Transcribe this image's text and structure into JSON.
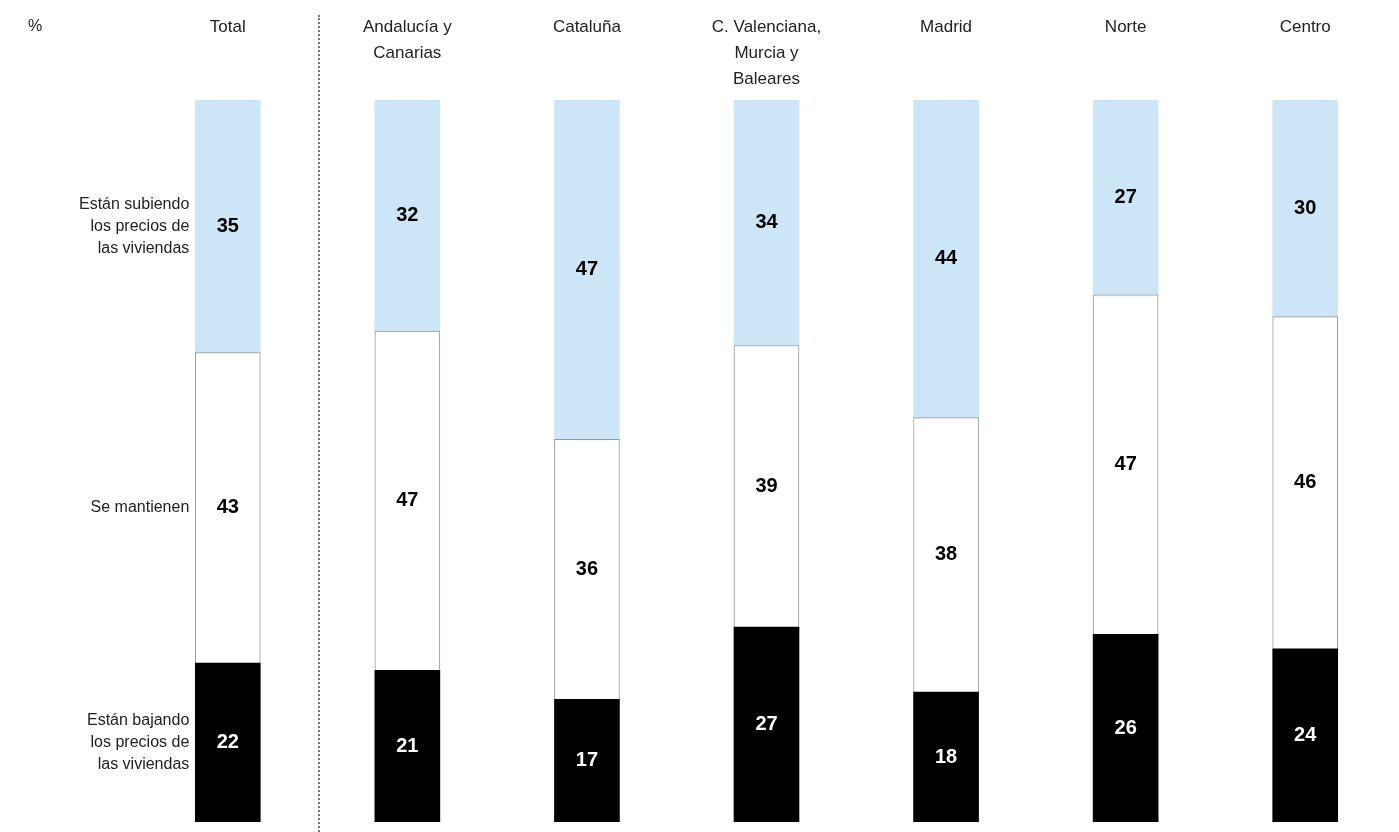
{
  "chart_data": {
    "type": "bar",
    "stacked": true,
    "annotations": [
      "%"
    ],
    "categories": [
      "Total",
      "Andalucía y Canarias",
      "Cataluña",
      "C. Valenciana, Murcia y Baleares",
      "Madrid",
      "Norte",
      "Centro"
    ],
    "series": [
      {
        "name": "Están bajando los precios de las viviendas",
        "color": "#000000",
        "values": [
          22,
          21,
          17,
          27,
          18,
          26,
          24
        ]
      },
      {
        "name": "Se mantienen",
        "color": "#ffffff",
        "values": [
          43,
          47,
          36,
          39,
          38,
          47,
          46
        ]
      },
      {
        "name": "Están subiendo los precios de las viviendas",
        "color": "#cce6f7",
        "values": [
          35,
          32,
          47,
          34,
          44,
          27,
          30
        ]
      }
    ],
    "tick_labels": false,
    "grid": false,
    "data_labels": true
  }
}
